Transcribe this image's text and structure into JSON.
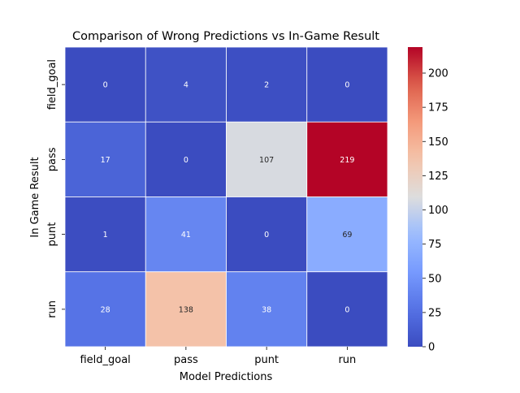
{
  "chart_data": {
    "type": "heatmap",
    "title": "Comparison of Wrong Predictions vs In-Game Result",
    "xlabel": "Model Predictions",
    "ylabel": "In Game Result",
    "x_categories": [
      "field_goal",
      "pass",
      "punt",
      "run"
    ],
    "y_categories": [
      "field_goal",
      "pass",
      "punt",
      "run"
    ],
    "values": [
      [
        0,
        4,
        2,
        0
      ],
      [
        17,
        0,
        107,
        219
      ],
      [
        1,
        41,
        0,
        69
      ],
      [
        28,
        138,
        38,
        0
      ]
    ],
    "colormap": "coolwarm",
    "value_range": [
      0,
      219
    ],
    "colorbar_ticks": [
      0,
      25,
      50,
      75,
      100,
      125,
      150,
      175,
      200
    ],
    "colorbar_tick_labels": [
      "0",
      "25",
      "50",
      "75",
      "100",
      "125",
      "150",
      "175",
      "200"
    ],
    "annotations": true,
    "cell_border_color": "#ffffff"
  }
}
